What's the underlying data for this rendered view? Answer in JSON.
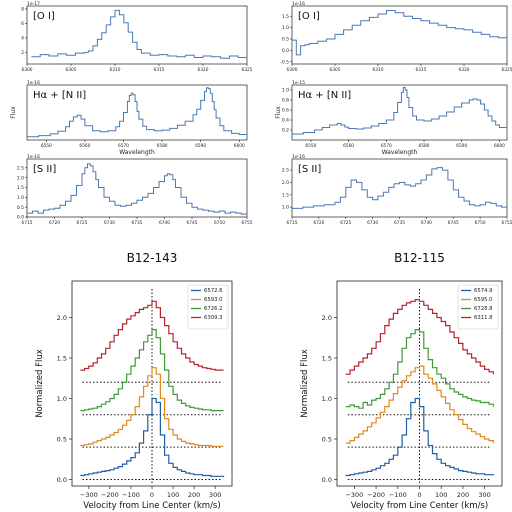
{
  "chart_data": [
    {
      "type": "line",
      "object": "B12-143",
      "panel": "O I",
      "title": "[O I]",
      "xlabel": "",
      "ylabel": "",
      "exponent_label": "1e-17",
      "xlim": [
        6300,
        6325
      ],
      "ylim": [
        0.4,
        8.4
      ],
      "xticks": [
        6300,
        6305,
        6310,
        6315,
        6320,
        6325
      ],
      "yticks": [
        2,
        4,
        6,
        8
      ],
      "x": [
        6300.5,
        6301.5,
        6302.5,
        6303.5,
        6304.5,
        6305.5,
        6306.5,
        6307,
        6307.5,
        6308,
        6308.5,
        6309,
        6309.5,
        6310,
        6310.5,
        6311,
        6311.5,
        6312,
        6312.5,
        6313,
        6314,
        6315,
        6316,
        6317,
        6318,
        6319,
        6320,
        6321,
        6322,
        6323,
        6324,
        6325
      ],
      "y": [
        1.4,
        1.7,
        1.5,
        1.8,
        1.6,
        1.9,
        2.0,
        2.2,
        2.9,
        3.8,
        4.7,
        5.8,
        6.9,
        7.8,
        7.2,
        6.1,
        4.8,
        3.4,
        2.4,
        1.9,
        1.6,
        1.7,
        1.5,
        1.4,
        1.6,
        1.3,
        1.5,
        1.4,
        1.2,
        1.5,
        1.3,
        1.2
      ]
    },
    {
      "type": "line",
      "object": "B12-143",
      "panel": "Ha + N II",
      "title": "Hα + [N II]",
      "xlabel": "Wavelength",
      "ylabel": "Flux",
      "exponent_label": "1e-16",
      "xlim": [
        6545,
        6602
      ],
      "ylim": [
        0,
        10
      ],
      "xticks": [
        6550,
        6560,
        6570,
        6580,
        6590,
        6600
      ],
      "yticks": [],
      "x": [
        6545,
        6548,
        6551,
        6553,
        6555,
        6556,
        6557,
        6558,
        6559,
        6560,
        6562,
        6564,
        6566,
        6568,
        6569,
        6570,
        6571,
        6571.5,
        6572,
        6572.5,
        6573,
        6573.5,
        6574,
        6575,
        6576,
        6578,
        6580,
        6582,
        6584,
        6586,
        6588,
        6589,
        6590,
        6591,
        6591.5,
        6592,
        6592.5,
        6593,
        6593.5,
        6594,
        6595,
        6596,
        6598,
        6600,
        6602
      ],
      "y": [
        0.6,
        0.8,
        1.1,
        1.6,
        2.4,
        3.4,
        4.2,
        4.5,
        3.8,
        2.6,
        1.7,
        1.5,
        1.7,
        2.4,
        3.4,
        5.0,
        7.0,
        8.1,
        8.5,
        8.2,
        7.0,
        5.2,
        3.8,
        2.5,
        1.9,
        1.7,
        1.8,
        2.1,
        2.7,
        3.4,
        4.6,
        5.6,
        7.2,
        8.8,
        9.5,
        9.3,
        8.5,
        7.0,
        5.5,
        4.0,
        2.6,
        1.7,
        1.2,
        1.0,
        0.8
      ]
    },
    {
      "type": "line",
      "object": "B12-143",
      "panel": "S II",
      "title": "[S II]",
      "xlabel": "",
      "ylabel": "",
      "exponent_label": "1e-16",
      "xlim": [
        6715,
        6755
      ],
      "ylim": [
        0,
        2.95
      ],
      "xticks": [
        6715,
        6720,
        6725,
        6730,
        6735,
        6740,
        6745,
        6750,
        6755
      ],
      "yticks": [
        0.0,
        0.5,
        1.0,
        1.5,
        2.0,
        2.5
      ],
      "x": [
        6715,
        6716,
        6717,
        6718,
        6719,
        6720,
        6721,
        6722,
        6723,
        6724,
        6725,
        6725.5,
        6726,
        6726.5,
        6727,
        6727.5,
        6728,
        6729,
        6730,
        6731,
        6732,
        6733,
        6734,
        6735,
        6736,
        6737,
        6738,
        6739,
        6740,
        6740.5,
        6741,
        6741.5,
        6742,
        6743,
        6744,
        6745,
        6746,
        6747,
        6748,
        6749,
        6750,
        6751,
        6752,
        6753,
        6754,
        6755
      ],
      "y": [
        0.2,
        0.3,
        0.2,
        0.35,
        0.4,
        0.45,
        0.6,
        0.8,
        1.1,
        1.6,
        2.2,
        2.5,
        2.7,
        2.6,
        2.3,
        1.9,
        1.5,
        1.0,
        0.8,
        0.6,
        0.55,
        0.6,
        0.7,
        0.85,
        1.0,
        1.2,
        1.5,
        1.8,
        2.1,
        2.2,
        2.15,
        1.9,
        1.5,
        1.0,
        0.7,
        0.5,
        0.4,
        0.35,
        0.3,
        0.25,
        0.3,
        0.2,
        0.25,
        0.2,
        0.15,
        0.2
      ]
    },
    {
      "type": "line",
      "object": "B12-115",
      "panel": "O I",
      "title": "[O I]",
      "xlabel": "",
      "ylabel": "",
      "exponent_label": "1e-16",
      "xlim": [
        6300,
        6325
      ],
      "ylim": [
        -0.6,
        1.95
      ],
      "xticks": [
        6300,
        6305,
        6310,
        6315,
        6320,
        6325
      ],
      "yticks": [
        -0.5,
        0.0,
        0.5,
        1.0,
        1.5
      ],
      "x": [
        6300,
        6300.5,
        6301,
        6301.5,
        6302,
        6303,
        6304,
        6305,
        6306,
        6307,
        6308,
        6309,
        6310,
        6311,
        6312,
        6313,
        6314,
        6315,
        6316,
        6317,
        6318,
        6319,
        6320,
        6321,
        6322,
        6323,
        6324,
        6325
      ],
      "y": [
        0.45,
        -0.2,
        0.2,
        0.25,
        0.3,
        0.4,
        0.5,
        0.7,
        0.9,
        1.1,
        1.3,
        1.45,
        1.6,
        1.75,
        1.65,
        1.5,
        1.4,
        1.3,
        1.2,
        1.1,
        1.0,
        0.95,
        0.9,
        0.8,
        0.7,
        0.6,
        0.55,
        0.5
      ]
    },
    {
      "type": "line",
      "object": "B12-115",
      "panel": "Ha + N II",
      "title": "Hα + [N II]",
      "xlabel": "Wavelength",
      "ylabel": "Flux",
      "exponent_label": "1e-15",
      "xlim": [
        6545,
        6602
      ],
      "ylim": [
        0,
        1.1
      ],
      "xticks": [
        6550,
        6560,
        6570,
        6580,
        6590,
        6600
      ],
      "yticks": [
        0.2,
        0.4,
        0.6,
        0.8,
        1.0
      ],
      "x": [
        6545,
        6548,
        6551,
        6553,
        6555,
        6557,
        6558,
        6559,
        6560,
        6562,
        6564,
        6566,
        6568,
        6570,
        6572,
        6573,
        6574,
        6574.5,
        6575,
        6575.5,
        6576,
        6577,
        6578,
        6580,
        6582,
        6584,
        6586,
        6588,
        6590,
        6592,
        6593,
        6594,
        6595,
        6596,
        6597,
        6598,
        6599,
        6600,
        6602
      ],
      "y": [
        0.12,
        0.15,
        0.2,
        0.25,
        0.3,
        0.33,
        0.3,
        0.26,
        0.23,
        0.22,
        0.24,
        0.28,
        0.33,
        0.4,
        0.55,
        0.75,
        0.95,
        1.05,
        1.0,
        0.85,
        0.65,
        0.48,
        0.4,
        0.38,
        0.42,
        0.48,
        0.56,
        0.66,
        0.74,
        0.8,
        0.82,
        0.8,
        0.72,
        0.6,
        0.48,
        0.38,
        0.3,
        0.25,
        0.2
      ]
    },
    {
      "type": "line",
      "object": "B12-115",
      "panel": "S II",
      "title": "[S II]",
      "xlabel": "",
      "ylabel": "",
      "exponent_label": "1e-16",
      "xlim": [
        6715,
        6755
      ],
      "ylim": [
        0.6,
        2.95
      ],
      "xticks": [
        6715,
        6720,
        6725,
        6730,
        6735,
        6740,
        6745,
        6750,
        6755
      ],
      "yticks": [
        1.0,
        1.5,
        2.0,
        2.5
      ],
      "x": [
        6715,
        6717,
        6719,
        6721,
        6723,
        6724,
        6725,
        6726,
        6727,
        6728,
        6729,
        6730,
        6731,
        6732,
        6733,
        6734,
        6735,
        6736,
        6737,
        6738,
        6739,
        6740,
        6741,
        6742,
        6743,
        6744,
        6745,
        6746,
        6747,
        6748,
        6749,
        6750,
        6751,
        6752,
        6753,
        6754,
        6755
      ],
      "y": [
        0.95,
        1.0,
        1.05,
        1.1,
        1.2,
        1.4,
        1.8,
        2.1,
        2.0,
        1.7,
        1.4,
        1.3,
        1.45,
        1.6,
        1.8,
        1.95,
        2.0,
        1.9,
        1.85,
        1.95,
        2.1,
        2.3,
        2.55,
        2.6,
        2.5,
        2.1,
        1.7,
        1.4,
        1.25,
        1.1,
        1.05,
        1.1,
        1.2,
        1.15,
        1.05,
        1.0,
        0.95
      ]
    },
    {
      "type": "line",
      "object": "B12-143",
      "panel": "velocity",
      "title": "B12-143",
      "xlabel": "Velocity from Line Center (km/s)",
      "ylabel": "Normalized Flux",
      "xlim": [
        -380,
        380
      ],
      "ylim": [
        -0.08,
        2.45
      ],
      "xticks": [
        -300,
        -200,
        -100,
        0,
        100,
        200,
        300
      ],
      "yticks": [
        0.0,
        0.5,
        1.0,
        1.5,
        2.0
      ],
      "legend": "top-right",
      "reference_line_x": 0,
      "x": [
        -340,
        -320,
        -300,
        -280,
        -260,
        -240,
        -220,
        -200,
        -180,
        -160,
        -140,
        -120,
        -100,
        -80,
        -60,
        -40,
        -20,
        0,
        20,
        40,
        60,
        80,
        100,
        120,
        140,
        160,
        180,
        200,
        220,
        240,
        260,
        280,
        300,
        320,
        340
      ],
      "series": [
        {
          "name": "6572.6",
          "color": "#1f5fa8",
          "baseline": 0.0,
          "y": [
            0.05,
            0.06,
            0.07,
            0.08,
            0.09,
            0.1,
            0.11,
            0.12,
            0.14,
            0.16,
            0.19,
            0.23,
            0.27,
            0.33,
            0.45,
            0.6,
            0.8,
            1.0,
            0.95,
            0.55,
            0.3,
            0.2,
            0.15,
            0.12,
            0.1,
            0.08,
            0.07,
            0.06,
            0.06,
            0.05,
            0.05,
            0.04,
            0.04,
            0.04,
            0.03
          ]
        },
        {
          "name": "6593.0",
          "color": "#e08a1e",
          "baseline": 0.4,
          "y": [
            0.42,
            0.43,
            0.44,
            0.46,
            0.48,
            0.5,
            0.52,
            0.55,
            0.58,
            0.62,
            0.67,
            0.73,
            0.8,
            0.9,
            1.02,
            1.15,
            1.28,
            1.38,
            1.3,
            1.0,
            0.75,
            0.62,
            0.55,
            0.5,
            0.47,
            0.45,
            0.44,
            0.43,
            0.42,
            0.42,
            0.42,
            0.41,
            0.41,
            0.41,
            0.41
          ]
        },
        {
          "name": "6726.2",
          "color": "#3f9a3a",
          "baseline": 0.8,
          "y": [
            0.85,
            0.86,
            0.87,
            0.88,
            0.9,
            0.93,
            0.96,
            1.0,
            1.05,
            1.12,
            1.2,
            1.3,
            1.4,
            1.5,
            1.6,
            1.7,
            1.78,
            1.85,
            1.75,
            1.55,
            1.35,
            1.15,
            1.05,
            0.98,
            0.94,
            0.91,
            0.89,
            0.88,
            0.87,
            0.86,
            0.86,
            0.85,
            0.85,
            0.85,
            0.85
          ]
        },
        {
          "name": "6309.3",
          "color": "#b8232c",
          "baseline": 1.2,
          "y": [
            1.35,
            1.37,
            1.4,
            1.44,
            1.5,
            1.55,
            1.62,
            1.7,
            1.78,
            1.85,
            1.92,
            1.98,
            2.02,
            2.06,
            2.1,
            2.12,
            2.15,
            2.2,
            2.12,
            2.0,
            1.9,
            1.8,
            1.7,
            1.62,
            1.55,
            1.5,
            1.45,
            1.42,
            1.4,
            1.38,
            1.37,
            1.36,
            1.35,
            1.35,
            1.35
          ]
        }
      ]
    },
    {
      "type": "line",
      "object": "B12-115",
      "panel": "velocity",
      "title": "B12-115",
      "xlabel": "Velocity from Line Center (km/s)",
      "ylabel": "Normalized Flux",
      "xlim": [
        -380,
        380
      ],
      "ylim": [
        -0.08,
        2.45
      ],
      "xticks": [
        -300,
        -200,
        -100,
        0,
        100,
        200,
        300
      ],
      "yticks": [
        0.0,
        0.5,
        1.0,
        1.5,
        2.0
      ],
      "legend": "top-right",
      "reference_line_x": 0,
      "x": [
        -340,
        -320,
        -300,
        -280,
        -260,
        -240,
        -220,
        -200,
        -180,
        -160,
        -140,
        -120,
        -100,
        -80,
        -60,
        -40,
        -20,
        0,
        20,
        40,
        60,
        80,
        100,
        120,
        140,
        160,
        180,
        200,
        220,
        240,
        260,
        280,
        300,
        320,
        340
      ],
      "series": [
        {
          "name": "6574.9",
          "color": "#1f5fa8",
          "baseline": 0.0,
          "y": [
            0.05,
            0.06,
            0.07,
            0.08,
            0.09,
            0.1,
            0.12,
            0.14,
            0.17,
            0.2,
            0.25,
            0.3,
            0.4,
            0.55,
            0.75,
            0.95,
            1.0,
            0.9,
            0.6,
            0.42,
            0.32,
            0.25,
            0.2,
            0.17,
            0.15,
            0.13,
            0.11,
            0.1,
            0.09,
            0.08,
            0.07,
            0.07,
            0.06,
            0.06,
            0.05
          ]
        },
        {
          "name": "6595.0",
          "color": "#e08a1e",
          "baseline": 0.4,
          "y": [
            0.45,
            0.48,
            0.52,
            0.56,
            0.6,
            0.65,
            0.7,
            0.76,
            0.83,
            0.9,
            0.98,
            1.06,
            1.14,
            1.22,
            1.28,
            1.33,
            1.38,
            1.4,
            1.3,
            1.25,
            1.18,
            1.1,
            1.02,
            0.94,
            0.86,
            0.8,
            0.74,
            0.68,
            0.63,
            0.59,
            0.56,
            0.53,
            0.5,
            0.48,
            0.45
          ]
        },
        {
          "name": "6728.8",
          "color": "#3f9a3a",
          "baseline": 0.8,
          "y": [
            0.9,
            0.92,
            0.9,
            0.88,
            0.95,
            0.92,
            0.98,
            1.0,
            1.05,
            1.12,
            1.2,
            1.3,
            1.45,
            1.62,
            1.75,
            1.8,
            1.85,
            1.82,
            1.62,
            1.48,
            1.38,
            1.3,
            1.25,
            1.18,
            1.12,
            1.08,
            1.05,
            1.02,
            1.0,
            0.98,
            0.97,
            0.95,
            0.95,
            0.93,
            0.9
          ]
        },
        {
          "name": "6311.8",
          "color": "#b8232c",
          "baseline": 1.2,
          "y": [
            1.3,
            1.35,
            1.4,
            1.45,
            1.5,
            1.55,
            1.62,
            1.7,
            1.8,
            1.9,
            1.98,
            2.05,
            2.1,
            2.15,
            2.18,
            2.2,
            2.22,
            2.2,
            2.15,
            2.1,
            2.05,
            2.0,
            1.95,
            1.9,
            1.82,
            1.75,
            1.68,
            1.6,
            1.55,
            1.5,
            1.45,
            1.4,
            1.36,
            1.33,
            1.3
          ]
        }
      ]
    }
  ]
}
